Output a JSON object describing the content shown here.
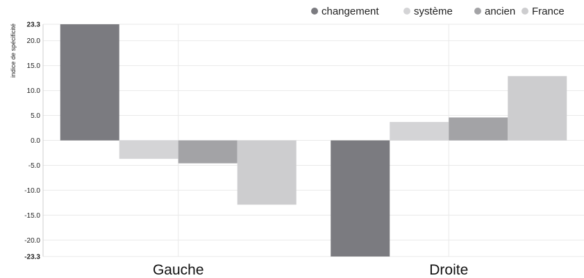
{
  "chart_data": {
    "type": "bar",
    "categories": [
      "Gauche",
      "Droite"
    ],
    "series": [
      {
        "name": "changement",
        "values": [
          23.3,
          -23.3
        ],
        "color": "#7b7b80"
      },
      {
        "name": "système",
        "values": [
          -3.7,
          3.7
        ],
        "color": "#d4d4d6"
      },
      {
        "name": "ancien",
        "values": [
          -4.6,
          4.6
        ],
        "color": "#a3a3a6"
      },
      {
        "name": "France",
        "values": [
          -12.9,
          12.9
        ],
        "color": "#cdcdcf"
      }
    ],
    "title": "",
    "xlabel": "",
    "ylabel": "indice de spécificité",
    "ylim": [
      -23.3,
      23.3
    ],
    "yticks": [
      "23.3",
      "20.0",
      "15.0",
      "10.0",
      "5.0",
      "0.0",
      "-5.0",
      "-10.0",
      "-15.0",
      "-20.0",
      "-23.3"
    ],
    "legend_position": "top-right",
    "grid": true
  }
}
